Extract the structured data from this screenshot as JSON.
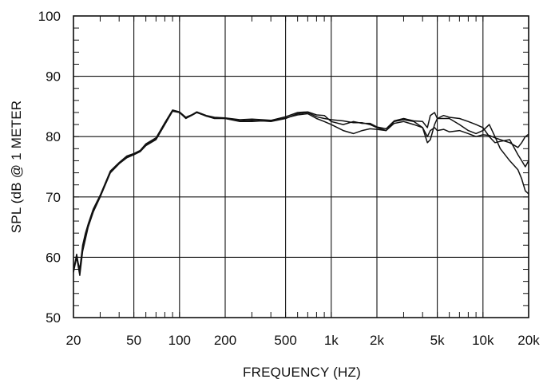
{
  "chart_data": {
    "type": "line",
    "title": "",
    "xlabel": "FREQUENCY  (HZ)",
    "ylabel": "SPL (dB @ 1 METER",
    "x_scale": "log",
    "xlim": [
      20,
      20000
    ],
    "ylim": [
      50,
      100
    ],
    "grid": true,
    "legend": "none",
    "line_color": "#111111",
    "grid_color": "#111111",
    "x_ticks": [
      {
        "value": 20,
        "label": "20"
      },
      {
        "value": 50,
        "label": "50"
      },
      {
        "value": 100,
        "label": "100"
      },
      {
        "value": 200,
        "label": "200"
      },
      {
        "value": 500,
        "label": "500"
      },
      {
        "value": 1000,
        "label": "1k"
      },
      {
        "value": 2000,
        "label": "2k"
      },
      {
        "value": 5000,
        "label": "5k"
      },
      {
        "value": 10000,
        "label": "10k"
      },
      {
        "value": 20000,
        "label": "20k"
      }
    ],
    "y_ticks": [
      {
        "value": 50,
        "label": "50"
      },
      {
        "value": 60,
        "label": "60"
      },
      {
        "value": 70,
        "label": "70"
      },
      {
        "value": 80,
        "label": "80"
      },
      {
        "value": 90,
        "label": "90"
      },
      {
        "value": 100,
        "label": "100"
      }
    ],
    "series": [
      {
        "points": [
          [
            20,
            57.5
          ],
          [
            21,
            60
          ],
          [
            22,
            57
          ],
          [
            23,
            61
          ],
          [
            24,
            63
          ],
          [
            25,
            65
          ],
          [
            27,
            67.5
          ],
          [
            30,
            70
          ],
          [
            35,
            74
          ],
          [
            40,
            75.5
          ],
          [
            45,
            76.5
          ],
          [
            50,
            77
          ],
          [
            55,
            77.5
          ],
          [
            60,
            78.5
          ],
          [
            70,
            79.5
          ],
          [
            80,
            82
          ],
          [
            90,
            84.2
          ],
          [
            100,
            84
          ],
          [
            110,
            83
          ],
          [
            120,
            83.5
          ],
          [
            130,
            84
          ],
          [
            150,
            83.4
          ],
          [
            170,
            83
          ],
          [
            200,
            83
          ],
          [
            250,
            82.5
          ],
          [
            300,
            82.5
          ],
          [
            350,
            82.6
          ],
          [
            400,
            82.5
          ],
          [
            500,
            83
          ],
          [
            600,
            83.8
          ],
          [
            700,
            84
          ],
          [
            800,
            83.3
          ],
          [
            900,
            83
          ],
          [
            1000,
            82.8
          ],
          [
            1200,
            82.6
          ],
          [
            1400,
            82.3
          ],
          [
            1600,
            82.3
          ],
          [
            1800,
            82
          ],
          [
            2000,
            81.5
          ],
          [
            2300,
            81
          ],
          [
            2600,
            82.5
          ],
          [
            3000,
            82.8
          ],
          [
            3500,
            82.5
          ],
          [
            4000,
            81.5
          ],
          [
            4300,
            79
          ],
          [
            4500,
            79.5
          ],
          [
            4800,
            82
          ],
          [
            5000,
            83
          ],
          [
            5500,
            83
          ],
          [
            6000,
            83
          ],
          [
            7000,
            82
          ],
          [
            8000,
            81
          ],
          [
            9000,
            80.5
          ],
          [
            10000,
            81
          ],
          [
            11000,
            82
          ],
          [
            12000,
            80
          ],
          [
            13000,
            78
          ],
          [
            15000,
            76
          ],
          [
            17000,
            74.5
          ],
          [
            18000,
            73
          ],
          [
            19000,
            71
          ],
          [
            20000,
            70.5
          ]
        ]
      },
      {
        "points": [
          [
            20,
            58
          ],
          [
            21,
            60
          ],
          [
            22,
            58
          ],
          [
            23,
            62
          ],
          [
            24,
            64
          ],
          [
            25,
            65.5
          ],
          [
            27,
            68
          ],
          [
            30,
            70.3
          ],
          [
            35,
            74.3
          ],
          [
            40,
            75.7
          ],
          [
            45,
            76.8
          ],
          [
            50,
            77.2
          ],
          [
            55,
            77.7
          ],
          [
            60,
            78.8
          ],
          [
            70,
            79.8
          ],
          [
            80,
            82.3
          ],
          [
            90,
            84.4
          ],
          [
            100,
            84.1
          ],
          [
            110,
            83.2
          ],
          [
            120,
            83.6
          ],
          [
            130,
            84.1
          ],
          [
            150,
            83.5
          ],
          [
            170,
            83.2
          ],
          [
            200,
            83.1
          ],
          [
            250,
            82.8
          ],
          [
            300,
            82.9
          ],
          [
            350,
            82.8
          ],
          [
            400,
            82.7
          ],
          [
            500,
            83.3
          ],
          [
            600,
            84
          ],
          [
            700,
            84.1
          ],
          [
            800,
            83.6
          ],
          [
            900,
            83.5
          ],
          [
            1000,
            82.5
          ],
          [
            1200,
            82
          ],
          [
            1400,
            82.5
          ],
          [
            1600,
            82.2
          ],
          [
            1800,
            82.2
          ],
          [
            2000,
            81.6
          ],
          [
            2300,
            81.3
          ],
          [
            2600,
            82.6
          ],
          [
            3000,
            83
          ],
          [
            3500,
            82.6
          ],
          [
            4000,
            82.5
          ],
          [
            4300,
            81.5
          ],
          [
            4500,
            83.5
          ],
          [
            4800,
            84
          ],
          [
            5000,
            83
          ],
          [
            5500,
            83.5
          ],
          [
            6000,
            83.2
          ],
          [
            7000,
            83
          ],
          [
            8000,
            82.5
          ],
          [
            9000,
            82
          ],
          [
            10000,
            81.5
          ],
          [
            11000,
            80
          ],
          [
            12000,
            79
          ],
          [
            13000,
            79.2
          ],
          [
            15000,
            79.5
          ],
          [
            17000,
            77
          ],
          [
            18000,
            76
          ],
          [
            19000,
            75
          ],
          [
            20000,
            76
          ]
        ]
      },
      {
        "points": [
          [
            20,
            57.8
          ],
          [
            21,
            60.5
          ],
          [
            22,
            57.5
          ],
          [
            23,
            61.5
          ],
          [
            24,
            63.5
          ],
          [
            25,
            65.2
          ],
          [
            27,
            67.8
          ],
          [
            30,
            70.1
          ],
          [
            35,
            74.1
          ],
          [
            40,
            75.6
          ],
          [
            45,
            76.6
          ],
          [
            50,
            77.1
          ],
          [
            55,
            77.6
          ],
          [
            60,
            78.6
          ],
          [
            70,
            79.6
          ],
          [
            80,
            82.1
          ],
          [
            90,
            84.3
          ],
          [
            100,
            84
          ],
          [
            110,
            83.1
          ],
          [
            120,
            83.5
          ],
          [
            130,
            84
          ],
          [
            150,
            83.4
          ],
          [
            170,
            83.1
          ],
          [
            200,
            83
          ],
          [
            250,
            82.6
          ],
          [
            300,
            82.7
          ],
          [
            350,
            82.6
          ],
          [
            400,
            82.6
          ],
          [
            500,
            83.1
          ],
          [
            600,
            83.6
          ],
          [
            700,
            83.8
          ],
          [
            800,
            83
          ],
          [
            900,
            82.5
          ],
          [
            1000,
            82
          ],
          [
            1200,
            81
          ],
          [
            1400,
            80.5
          ],
          [
            1600,
            81
          ],
          [
            1800,
            81.3
          ],
          [
            2000,
            81.2
          ],
          [
            2300,
            81
          ],
          [
            2600,
            82.2
          ],
          [
            3000,
            82.5
          ],
          [
            3500,
            82
          ],
          [
            4000,
            81.5
          ],
          [
            4300,
            80
          ],
          [
            4500,
            81
          ],
          [
            4800,
            81.5
          ],
          [
            5000,
            81
          ],
          [
            5500,
            81.2
          ],
          [
            6000,
            80.8
          ],
          [
            7000,
            81
          ],
          [
            8000,
            80.5
          ],
          [
            9000,
            80
          ],
          [
            10000,
            80.3
          ],
          [
            11000,
            80.2
          ],
          [
            12000,
            79.8
          ],
          [
            13000,
            79.5
          ],
          [
            15000,
            79
          ],
          [
            17000,
            78.2
          ],
          [
            18000,
            79
          ],
          [
            19000,
            80
          ],
          [
            20000,
            80.4
          ]
        ]
      }
    ]
  }
}
